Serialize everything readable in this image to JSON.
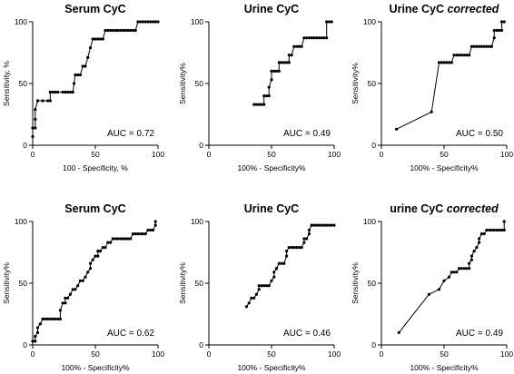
{
  "chart_data": [
    {
      "type": "line",
      "title": "Serum CyC",
      "title_suffix": "",
      "xlabel": "100 - Specificity, %",
      "ylabel": "Sensitivity, %",
      "xlim": [
        0,
        100
      ],
      "ylim": [
        0,
        100
      ],
      "xticks": [
        0,
        50,
        100
      ],
      "yticks": [
        0,
        50,
        100
      ],
      "annotation": "AUC = 0.72",
      "x": [
        0,
        0,
        2,
        2,
        2,
        4,
        4,
        8,
        12,
        14,
        14,
        16,
        18,
        20,
        20,
        24,
        26,
        28,
        30,
        32,
        33,
        34,
        36,
        38,
        40,
        42,
        44,
        46,
        48,
        50,
        52,
        54,
        56,
        58,
        60,
        62,
        64,
        66,
        68,
        70,
        72,
        74,
        76,
        78,
        80,
        82,
        84,
        86,
        88,
        90,
        92,
        94,
        96,
        98,
        100
      ],
      "y": [
        7,
        14,
        14,
        21,
        29,
        36,
        36,
        36,
        36,
        36,
        43,
        43,
        43,
        43,
        43,
        43,
        43,
        43,
        43,
        43,
        50,
        57,
        57,
        57,
        64,
        64,
        71,
        79,
        86,
        86,
        86,
        86,
        86,
        93,
        93,
        93,
        93,
        93,
        93,
        93,
        93,
        93,
        93,
        93,
        93,
        93,
        100,
        100,
        100,
        100,
        100,
        100,
        100,
        100,
        100
      ]
    },
    {
      "type": "line",
      "title": "Urine CyC",
      "title_suffix": "",
      "xlabel": "100% - Specificity%",
      "ylabel": "Sensitivity%",
      "xlim": [
        0,
        100
      ],
      "ylim": [
        0,
        100
      ],
      "xticks": [
        0,
        50,
        100
      ],
      "yticks": [
        0,
        50,
        100
      ],
      "annotation": "AUC = 0.49",
      "x": [
        36,
        38,
        40,
        42,
        44,
        44,
        46,
        48,
        48,
        50,
        50,
        52,
        54,
        56,
        56,
        58,
        60,
        62,
        64,
        64,
        66,
        68,
        70,
        72,
        74,
        76,
        78,
        80,
        82,
        84,
        86,
        88,
        90,
        92,
        94,
        94,
        96,
        98
      ],
      "y": [
        33,
        33,
        33,
        33,
        33,
        40,
        40,
        40,
        47,
        53,
        60,
        60,
        60,
        60,
        67,
        67,
        67,
        67,
        67,
        73,
        73,
        80,
        80,
        80,
        80,
        87,
        87,
        87,
        87,
        87,
        87,
        87,
        87,
        87,
        87,
        100,
        100,
        100
      ]
    },
    {
      "type": "line",
      "title": "Urine CyC",
      "title_suffix": "corrected",
      "xlabel": "100% - Specificity%",
      "ylabel": "Sensitivity%",
      "xlim": [
        0,
        100
      ],
      "ylim": [
        0,
        100
      ],
      "xticks": [
        0,
        50,
        100
      ],
      "yticks": [
        0,
        50,
        100
      ],
      "annotation": "AUC = 0.50",
      "x": [
        12,
        40,
        46,
        48,
        50,
        52,
        54,
        56,
        58,
        60,
        62,
        64,
        66,
        68,
        70,
        72,
        74,
        76,
        78,
        80,
        82,
        84,
        86,
        88,
        90,
        90,
        92,
        94,
        96,
        96,
        98
      ],
      "y": [
        13,
        27,
        67,
        67,
        67,
        67,
        67,
        67,
        73,
        73,
        73,
        73,
        73,
        73,
        73,
        80,
        80,
        80,
        80,
        80,
        80,
        80,
        80,
        80,
        87,
        93,
        93,
        93,
        93,
        100,
        100
      ]
    },
    {
      "type": "line",
      "title": "Serum CyC",
      "title_suffix": "",
      "xlabel": "100% - Specificity%",
      "ylabel": "Sensitivity%",
      "xlim": [
        0,
        100
      ],
      "ylim": [
        0,
        100
      ],
      "xticks": [
        0,
        50,
        100
      ],
      "yticks": [
        0,
        50,
        100
      ],
      "annotation": "AUC = 0.62",
      "x": [
        0,
        2,
        2,
        4,
        4,
        6,
        8,
        10,
        12,
        14,
        16,
        18,
        20,
        22,
        22,
        24,
        26,
        26,
        28,
        30,
        32,
        34,
        36,
        38,
        40,
        42,
        44,
        46,
        46,
        48,
        50,
        52,
        52,
        54,
        56,
        58,
        60,
        62,
        64,
        66,
        68,
        70,
        72,
        74,
        76,
        78,
        80,
        82,
        84,
        86,
        88,
        90,
        92,
        94,
        96,
        98,
        98
      ],
      "y": [
        3,
        3,
        7,
        10,
        14,
        17,
        21,
        21,
        21,
        21,
        21,
        21,
        21,
        21,
        28,
        34,
        34,
        38,
        38,
        41,
        45,
        45,
        48,
        52,
        52,
        55,
        59,
        62,
        66,
        69,
        72,
        72,
        76,
        76,
        79,
        79,
        83,
        83,
        86,
        86,
        86,
        86,
        86,
        86,
        86,
        86,
        90,
        90,
        90,
        90,
        90,
        90,
        93,
        93,
        93,
        97,
        100
      ]
    },
    {
      "type": "line",
      "title": "Urine CyC",
      "title_suffix": "",
      "xlabel": "100% - Specificity%",
      "ylabel": "Sensitivity%",
      "xlim": [
        0,
        100
      ],
      "ylim": [
        0,
        100
      ],
      "xticks": [
        0,
        50,
        100
      ],
      "yticks": [
        0,
        50,
        100
      ],
      "annotation": "AUC = 0.46",
      "x": [
        30,
        32,
        34,
        36,
        38,
        40,
        40,
        42,
        44,
        46,
        48,
        50,
        52,
        52,
        54,
        54,
        56,
        58,
        60,
        62,
        62,
        64,
        66,
        68,
        70,
        72,
        74,
        76,
        76,
        78,
        80,
        80,
        82,
        84,
        86,
        88,
        90,
        92,
        94,
        96,
        98,
        100
      ],
      "y": [
        31,
        34,
        38,
        38,
        41,
        45,
        48,
        48,
        48,
        48,
        48,
        52,
        55,
        59,
        62,
        62,
        66,
        66,
        66,
        72,
        76,
        79,
        79,
        79,
        79,
        79,
        79,
        83,
        86,
        86,
        90,
        93,
        97,
        97,
        97,
        97,
        97,
        97,
        97,
        97,
        97,
        97
      ]
    },
    {
      "type": "line",
      "title": "urine CyC",
      "title_suffix": "corrected",
      "xlabel": "100% - Specificity%",
      "ylabel": "Sensitivity%",
      "xlim": [
        0,
        100
      ],
      "ylim": [
        0,
        100
      ],
      "xticks": [
        0,
        50,
        100
      ],
      "yticks": [
        0,
        50,
        100
      ],
      "annotation": "AUC = 0.49",
      "x": [
        14,
        38,
        46,
        50,
        54,
        56,
        58,
        60,
        62,
        64,
        66,
        68,
        70,
        70,
        72,
        72,
        74,
        76,
        78,
        78,
        80,
        82,
        84,
        86,
        88,
        90,
        92,
        94,
        96,
        98,
        98
      ],
      "y": [
        10,
        41,
        45,
        52,
        55,
        59,
        59,
        59,
        62,
        62,
        62,
        62,
        62,
        66,
        69,
        72,
        76,
        79,
        83,
        86,
        90,
        90,
        93,
        93,
        93,
        93,
        93,
        93,
        93,
        93,
        100
      ]
    }
  ]
}
